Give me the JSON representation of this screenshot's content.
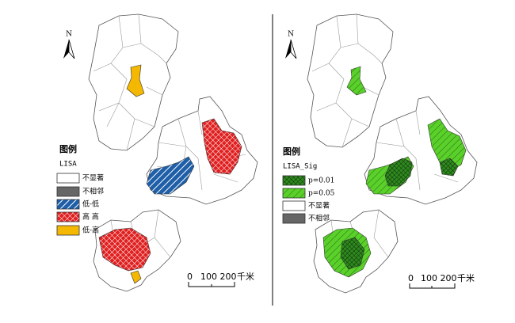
{
  "panels": [
    {
      "north": "N",
      "legend": {
        "title": "图例",
        "subtitle": "LISA",
        "items": [
          "不显著",
          "不相邻",
          "低-低",
          "高 高",
          "低-高"
        ]
      },
      "scale": {
        "labels": [
          "0",
          "100 200",
          "千米"
        ]
      }
    },
    {
      "north": "N",
      "legend": {
        "title": "图例",
        "subtitle": "LISA_Sig",
        "items": [
          "p=0.01",
          "p=0.05",
          "不显著",
          "不相邻"
        ]
      },
      "scale": {
        "labels": [
          "0",
          "100 200",
          "千米"
        ]
      }
    }
  ]
}
